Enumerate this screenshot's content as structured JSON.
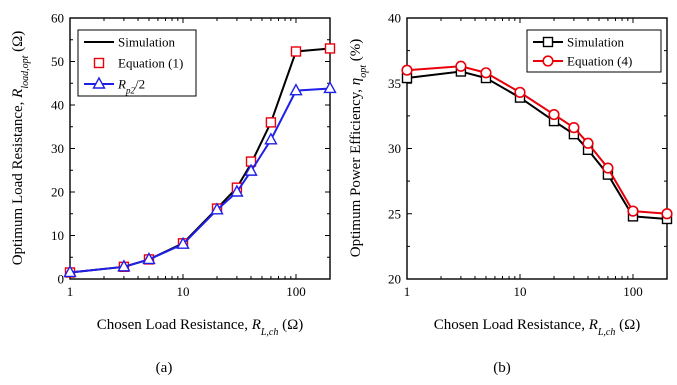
{
  "figure": {
    "panel_labels": [
      "(a)",
      "(b)"
    ]
  },
  "chart_data": [
    {
      "type": "line",
      "panel": "(a)",
      "x_scale": "log",
      "xlim": [
        1,
        200
      ],
      "ylim": [
        0,
        60
      ],
      "x_ticks": [
        1,
        10,
        100
      ],
      "y_ticks": [
        0,
        10,
        20,
        30,
        40,
        50,
        60
      ],
      "grid": false,
      "legend_position": "top-left",
      "xlabel": {
        "text": "Chosen Load Resistance, ",
        "var": "R",
        "sub": "L,ch",
        "unit": " (Ω)"
      },
      "ylabel": {
        "text": "Optimum Load Resistance, ",
        "var": "R",
        "sub": "load,opt",
        "unit": " (Ω)"
      },
      "series": [
        {
          "name": "Simulation",
          "color": "#000000",
          "marker": "none",
          "line": true,
          "x": [
            1,
            3,
            5,
            10,
            20,
            30,
            40,
            60,
            100,
            200
          ],
          "y": [
            1.5,
            2.8,
            4.5,
            8.2,
            16.2,
            21.0,
            26.5,
            36.0,
            52.3,
            53.0
          ]
        },
        {
          "name": "Equation (1)",
          "color": "#e8000b",
          "marker": "square",
          "line": false,
          "x": [
            1,
            3,
            5,
            10,
            20,
            30,
            40,
            60,
            100,
            200
          ],
          "y": [
            1.5,
            2.8,
            4.5,
            8.2,
            16.2,
            21.0,
            27.0,
            36.0,
            52.3,
            53.0
          ]
        },
        {
          "name_var": "R",
          "name_sub": "p2",
          "name_suffix": "/2",
          "color": "#1f1fe8",
          "marker": "triangle",
          "line": true,
          "x": [
            1,
            3,
            5,
            10,
            20,
            30,
            40,
            60,
            100,
            200
          ],
          "y": [
            1.5,
            2.8,
            4.5,
            8.0,
            15.9,
            20.0,
            24.8,
            32.0,
            43.3,
            43.8
          ]
        }
      ]
    },
    {
      "type": "line",
      "panel": "(b)",
      "x_scale": "log",
      "xlim": [
        1,
        200
      ],
      "ylim": [
        20,
        40
      ],
      "x_ticks": [
        1,
        10,
        100
      ],
      "y_ticks": [
        20,
        25,
        30,
        35,
        40
      ],
      "grid": false,
      "legend_position": "top-right",
      "xlabel": {
        "text": "Chosen Load Resistance, ",
        "var": "R",
        "sub": "L,ch",
        "unit": " (Ω)"
      },
      "ylabel": {
        "text": "Optimum Power Efficiency, ",
        "var": "η",
        "sub": "opt",
        "unit": " (%)"
      },
      "series": [
        {
          "name": "Simulation",
          "color": "#000000",
          "marker": "square",
          "line": true,
          "x": [
            1,
            3,
            5,
            10,
            20,
            30,
            40,
            60,
            100,
            200
          ],
          "y": [
            35.4,
            35.9,
            35.4,
            33.9,
            32.1,
            31.1,
            29.9,
            28.0,
            24.8,
            24.6
          ]
        },
        {
          "name": "Equation (4)",
          "color": "#e8000b",
          "marker": "circle",
          "line": true,
          "x": [
            1,
            3,
            5,
            10,
            20,
            30,
            40,
            60,
            100,
            200
          ],
          "y": [
            36.0,
            36.3,
            35.8,
            34.3,
            32.6,
            31.6,
            30.4,
            28.5,
            25.2,
            25.0
          ]
        }
      ]
    }
  ]
}
